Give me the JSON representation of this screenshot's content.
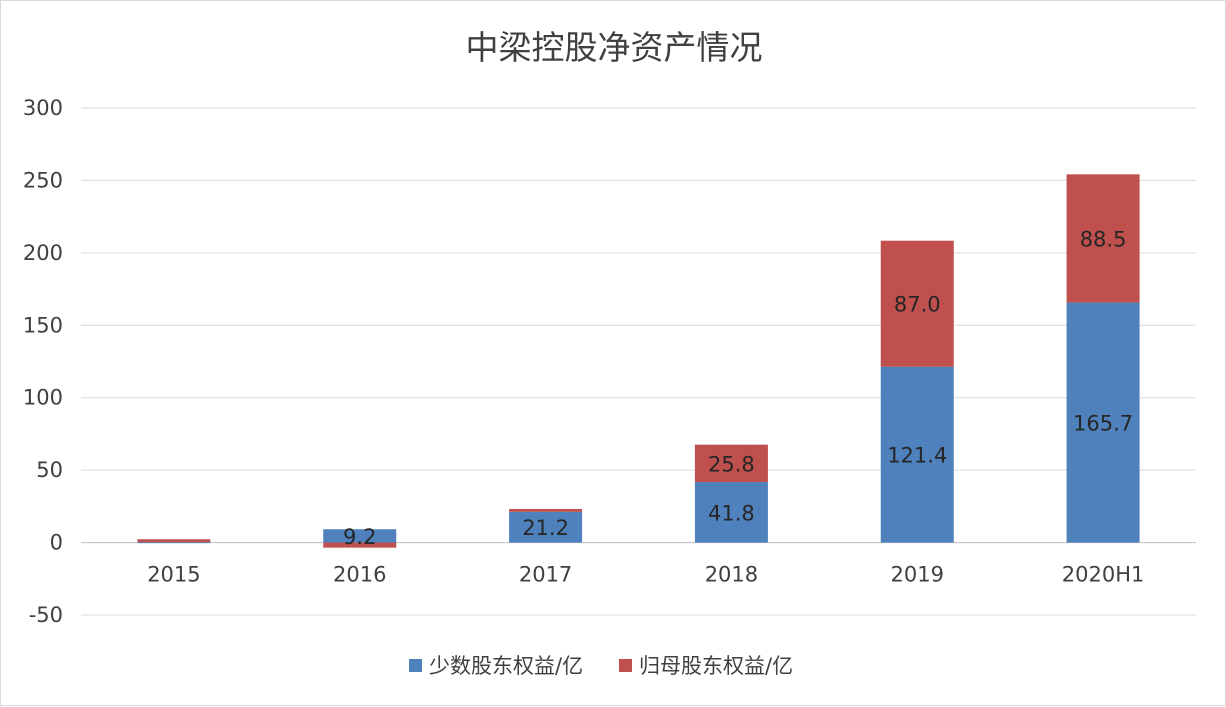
{
  "chart_data": {
    "type": "bar",
    "stacked": true,
    "title": "中梁控股净资产情况",
    "categories": [
      "2015",
      "2016",
      "2017",
      "2018",
      "2019",
      "2020H1"
    ],
    "series": [
      {
        "name": "少数股东权益/亿",
        "color": "#4F81BD",
        "values": [
          0.3,
          9.2,
          21.2,
          41.8,
          121.4,
          165.7
        ],
        "data_labels": [
          "",
          "9.2",
          "21.2",
          "41.8",
          "121.4",
          "165.7"
        ]
      },
      {
        "name": "归母股东权益/亿",
        "color": "#C0504D",
        "values": [
          2.0,
          -3.5,
          2.0,
          25.8,
          87.0,
          88.5
        ],
        "data_labels": [
          "",
          "",
          "",
          "25.8",
          "87.0",
          "88.5"
        ]
      }
    ],
    "yticks": [
      "-50",
      "0",
      "50",
      "100",
      "150",
      "200",
      "250",
      "300"
    ],
    "ylim": [
      -50,
      300
    ],
    "grid": true,
    "legend_position": "bottom"
  }
}
